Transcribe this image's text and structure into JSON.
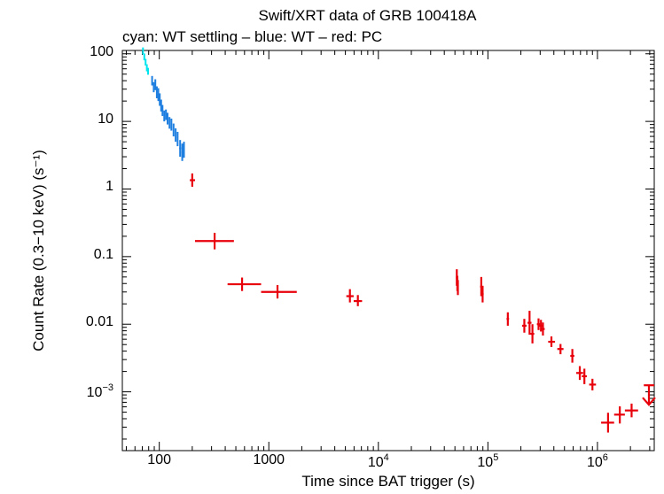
{
  "chart_data": {
    "type": "scatter",
    "title": "Swift/XRT data of GRB 100418A",
    "subtitle": "cyan: WT settling – blue: WT – red: PC",
    "xlabel": "Time since BAT trigger (s)",
    "ylabel": "Count Rate (0.3−10 keV) (s⁻¹)",
    "xscale": "log",
    "yscale": "log",
    "xlim": [
      46,
      3300000
    ],
    "ylim": [
      0.000135,
      112
    ],
    "x_ticks": [
      {
        "value": 100,
        "label": "100",
        "sup": ""
      },
      {
        "value": 1000,
        "label": "1000",
        "sup": ""
      },
      {
        "value": 10000,
        "label": "10",
        "sup": "4"
      },
      {
        "value": 100000,
        "label": "10",
        "sup": "5"
      },
      {
        "value": 1000000,
        "label": "10",
        "sup": "6"
      }
    ],
    "y_ticks": [
      {
        "value": 100,
        "label": "100",
        "sup": ""
      },
      {
        "value": 10,
        "label": "10",
        "sup": ""
      },
      {
        "value": 1,
        "label": "1",
        "sup": ""
      },
      {
        "value": 0.1,
        "label": "0.1",
        "sup": ""
      },
      {
        "value": 0.01,
        "label": "0.01",
        "sup": ""
      },
      {
        "value": 0.001,
        "label": "10",
        "sup": "−3"
      }
    ],
    "series": [
      {
        "name": "WT settling",
        "color": "#00e5ee",
        "points": [
          {
            "x": 71,
            "xlo": 70,
            "xhi": 72,
            "y": 110,
            "ylo": 98,
            "yhi": 124
          },
          {
            "x": 73,
            "xlo": 72,
            "xhi": 74,
            "y": 90,
            "ylo": 80,
            "yhi": 101
          },
          {
            "x": 75,
            "xlo": 74,
            "xhi": 76,
            "y": 75,
            "ylo": 67,
            "yhi": 84
          },
          {
            "x": 77,
            "xlo": 76,
            "xhi": 78,
            "y": 62,
            "ylo": 55,
            "yhi": 70
          },
          {
            "x": 79,
            "xlo": 78,
            "xhi": 80,
            "y": 55,
            "ylo": 49,
            "yhi": 62
          }
        ]
      },
      {
        "name": "WT",
        "color": "#1e7fe0",
        "points": [
          {
            "x": 86,
            "xlo": 85,
            "xhi": 87,
            "y": 40,
            "ylo": 34,
            "yhi": 47
          },
          {
            "x": 89,
            "xlo": 88,
            "xhi": 90,
            "y": 32,
            "ylo": 27,
            "yhi": 38
          },
          {
            "x": 92,
            "xlo": 91,
            "xhi": 93,
            "y": 35,
            "ylo": 29,
            "yhi": 42
          },
          {
            "x": 95,
            "xlo": 94,
            "xhi": 96,
            "y": 27,
            "ylo": 22,
            "yhi": 33
          },
          {
            "x": 98,
            "xlo": 97,
            "xhi": 99,
            "y": 25,
            "ylo": 20,
            "yhi": 31
          },
          {
            "x": 101,
            "xlo": 100,
            "xhi": 102,
            "y": 21,
            "ylo": 17,
            "yhi": 26
          },
          {
            "x": 104,
            "xlo": 103,
            "xhi": 105,
            "y": 17,
            "ylo": 14,
            "yhi": 21
          },
          {
            "x": 107,
            "xlo": 106,
            "xhi": 108,
            "y": 14.5,
            "ylo": 12,
            "yhi": 17.5
          },
          {
            "x": 111,
            "xlo": 110,
            "xhi": 112,
            "y": 12,
            "ylo": 10,
            "yhi": 14.5
          },
          {
            "x": 115,
            "xlo": 114,
            "xhi": 116,
            "y": 12.5,
            "ylo": 10.5,
            "yhi": 15
          },
          {
            "x": 119,
            "xlo": 118,
            "xhi": 120,
            "y": 11,
            "ylo": 9,
            "yhi": 13.4
          },
          {
            "x": 124,
            "xlo": 123,
            "xhi": 125,
            "y": 9.5,
            "ylo": 7.8,
            "yhi": 11.6
          },
          {
            "x": 129,
            "xlo": 128,
            "xhi": 130,
            "y": 9,
            "ylo": 7.3,
            "yhi": 11
          },
          {
            "x": 135,
            "xlo": 134,
            "xhi": 136,
            "y": 7.5,
            "ylo": 6,
            "yhi": 9.3
          },
          {
            "x": 141,
            "xlo": 140,
            "xhi": 142,
            "y": 6.3,
            "ylo": 5,
            "yhi": 7.9
          },
          {
            "x": 147,
            "xlo": 146,
            "xhi": 148,
            "y": 5.5,
            "ylo": 4.3,
            "yhi": 7
          },
          {
            "x": 155,
            "xlo": 152,
            "xhi": 158,
            "y": 4.0,
            "ylo": 3.0,
            "yhi": 5.3
          },
          {
            "x": 162,
            "xlo": 159,
            "xhi": 165,
            "y": 3.5,
            "ylo": 2.6,
            "yhi": 4.7
          },
          {
            "x": 168,
            "xlo": 165,
            "xhi": 171,
            "y": 3.8,
            "ylo": 2.9,
            "yhi": 5.0
          }
        ]
      },
      {
        "name": "PC",
        "color": "#e8000b",
        "points": [
          {
            "x": 200,
            "xlo": 190,
            "xhi": 212,
            "y": 1.35,
            "ylo": 1.08,
            "yhi": 1.7
          },
          {
            "x": 320,
            "xlo": 212,
            "xhi": 480,
            "y": 0.17,
            "ylo": 0.128,
            "yhi": 0.225
          },
          {
            "x": 570,
            "xlo": 420,
            "xhi": 850,
            "y": 0.039,
            "ylo": 0.031,
            "yhi": 0.049
          },
          {
            "x": 1200,
            "xlo": 850,
            "xhi": 1800,
            "y": 0.03,
            "ylo": 0.024,
            "yhi": 0.038
          },
          {
            "x": 5500,
            "xlo": 5100,
            "xhi": 5950,
            "y": 0.026,
            "ylo": 0.021,
            "yhi": 0.033
          },
          {
            "x": 6500,
            "xlo": 5950,
            "xhi": 7100,
            "y": 0.022,
            "ylo": 0.0185,
            "yhi": 0.027
          },
          {
            "x": 52000,
            "xlo": 51000,
            "xhi": 53000,
            "y": 0.049,
            "ylo": 0.037,
            "yhi": 0.065
          },
          {
            "x": 52600,
            "xlo": 52000,
            "xhi": 53200,
            "y": 0.04,
            "ylo": 0.031,
            "yhi": 0.052
          },
          {
            "x": 53200,
            "xlo": 52600,
            "xhi": 53800,
            "y": 0.035,
            "ylo": 0.027,
            "yhi": 0.045
          },
          {
            "x": 87000,
            "xlo": 85000,
            "xhi": 89000,
            "y": 0.036,
            "ylo": 0.026,
            "yhi": 0.05
          },
          {
            "x": 89500,
            "xlo": 87500,
            "xhi": 91500,
            "y": 0.028,
            "ylo": 0.021,
            "yhi": 0.037
          },
          {
            "x": 152000,
            "xlo": 148000,
            "xhi": 156000,
            "y": 0.012,
            "ylo": 0.0095,
            "yhi": 0.015
          },
          {
            "x": 215000,
            "xlo": 205000,
            "xhi": 225000,
            "y": 0.0095,
            "ylo": 0.0075,
            "yhi": 0.012
          },
          {
            "x": 240000,
            "xlo": 230000,
            "xhi": 250000,
            "y": 0.0105,
            "ylo": 0.007,
            "yhi": 0.0158
          },
          {
            "x": 255000,
            "xlo": 245000,
            "xhi": 265000,
            "y": 0.0072,
            "ylo": 0.0052,
            "yhi": 0.01
          },
          {
            "x": 290000,
            "xlo": 280000,
            "xhi": 300000,
            "y": 0.01,
            "ylo": 0.0082,
            "yhi": 0.0122
          },
          {
            "x": 305000,
            "xlo": 295000,
            "xhi": 315000,
            "y": 0.0095,
            "ylo": 0.0078,
            "yhi": 0.0116
          },
          {
            "x": 318000,
            "xlo": 308000,
            "xhi": 330000,
            "y": 0.0085,
            "ylo": 0.0068,
            "yhi": 0.0106
          },
          {
            "x": 380000,
            "xlo": 355000,
            "xhi": 410000,
            "y": 0.0055,
            "ylo": 0.0046,
            "yhi": 0.0066
          },
          {
            "x": 460000,
            "xlo": 430000,
            "xhi": 490000,
            "y": 0.0043,
            "ylo": 0.0036,
            "yhi": 0.0051
          },
          {
            "x": 590000,
            "xlo": 565000,
            "xhi": 615000,
            "y": 0.0034,
            "ylo": 0.0027,
            "yhi": 0.0043
          },
          {
            "x": 690000,
            "xlo": 640000,
            "xhi": 740000,
            "y": 0.0019,
            "ylo": 0.0015,
            "yhi": 0.0024
          },
          {
            "x": 760000,
            "xlo": 720000,
            "xhi": 800000,
            "y": 0.0017,
            "ylo": 0.0013,
            "yhi": 0.0022
          },
          {
            "x": 900000,
            "xlo": 840000,
            "xhi": 970000,
            "y": 0.00128,
            "ylo": 0.00105,
            "yhi": 0.00156
          },
          {
            "x": 1250000,
            "xlo": 1080000,
            "xhi": 1420000,
            "y": 0.00035,
            "ylo": 0.00025,
            "yhi": 0.00049
          },
          {
            "x": 1600000,
            "xlo": 1420000,
            "xhi": 1780000,
            "y": 0.00046,
            "ylo": 0.00034,
            "yhi": 0.00061
          },
          {
            "x": 2050000,
            "xlo": 1780000,
            "xhi": 2350000,
            "y": 0.00053,
            "ylo": 0.00042,
            "yhi": 0.00067
          }
        ]
      }
    ],
    "upper_limits": [
      {
        "x": 2950000,
        "xlo": 2650000,
        "xhi": 3300000,
        "y": 0.00125,
        "color": "#e8000b"
      }
    ]
  }
}
